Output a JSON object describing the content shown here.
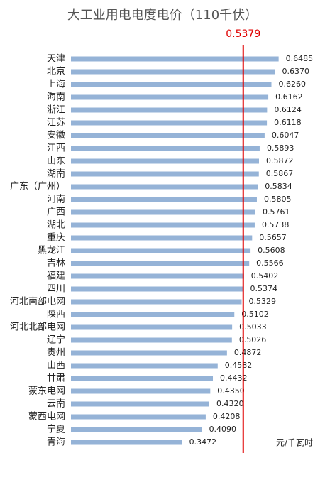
{
  "chart_data": {
    "type": "bar",
    "orientation": "horizontal",
    "title": "大工业用电电度电价（110千伏）",
    "unit_label": "元/千瓦时",
    "categories": [
      "天津",
      "北京",
      "上海",
      "海南",
      "浙江",
      "江苏",
      "安徽",
      "江西",
      "山东",
      "湖南",
      "广东（广州）",
      "河南",
      "广西",
      "湖北",
      "重庆",
      "黑龙江",
      "吉林",
      "福建",
      "四川",
      "河北南部电网",
      "陕西",
      "河北北部电网",
      "辽宁",
      "贵州",
      "山西",
      "甘肃",
      "蒙东电网",
      "云南",
      "蒙西电网",
      "宁夏",
      "青海"
    ],
    "values": [
      0.6485,
      0.637,
      0.626,
      0.6162,
      0.6124,
      0.6118,
      0.6047,
      0.5893,
      0.5872,
      0.5867,
      0.5834,
      0.5805,
      0.5761,
      0.5738,
      0.5657,
      0.5608,
      0.5566,
      0.5402,
      0.5374,
      0.5329,
      0.5102,
      0.5033,
      0.5026,
      0.4872,
      0.4582,
      0.4432,
      0.435,
      0.432,
      0.4208,
      0.409,
      0.3472
    ],
    "value_labels": [
      "0.6485",
      "0.6370",
      "0.6260",
      "0.6162",
      "0.6124",
      "0.6118",
      "0.6047",
      "0.5893",
      "0.5872",
      "0.5867",
      "0.5834",
      "0.5805",
      "0.5761",
      "0.5738",
      "0.5657",
      "0.5608",
      "0.5566",
      "0.5402",
      "0.5374",
      "0.5329",
      "0.5102",
      "0.5033",
      "0.5026",
      "0.4872",
      "0.4582",
      "0.4432",
      "0.4350",
      "0.4320",
      "0.4208",
      "0.4090",
      "0.3472"
    ],
    "color": "#95b3d7",
    "xlim": [
      0,
      0.78
    ],
    "reference_line": {
      "value": 0.5379,
      "color": "#e00000"
    }
  }
}
